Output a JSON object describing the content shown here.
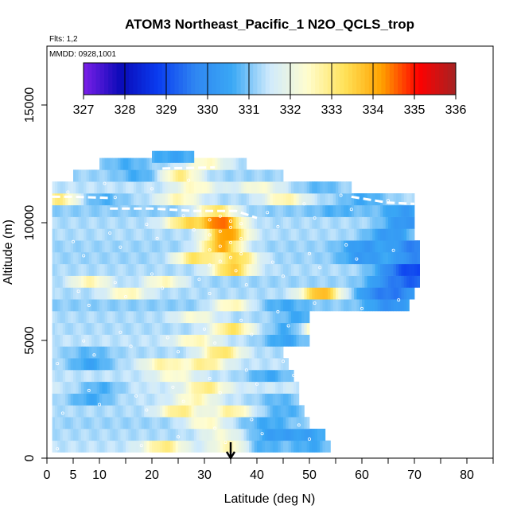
{
  "chart_data": {
    "type": "heatmap",
    "title": "ATOM3 Northeast_Pacific_1 N2O_QCLS_trop",
    "flights_label": "Flts: 1,2",
    "mmdd_label": "MMDD: 0928,1001",
    "xlabel": "Latitude (deg N)",
    "ylabel": "Altitude (m)",
    "xlim": [
      0,
      85
    ],
    "ylim": [
      0,
      17500
    ],
    "x_ticks": [
      0,
      5,
      10,
      20,
      30,
      40,
      50,
      60,
      70,
      80
    ],
    "y_ticks": [
      0,
      5000,
      10000,
      15000
    ],
    "colorbar": {
      "min": 327,
      "max": 336,
      "ticks": [
        327,
        328,
        329,
        330,
        331,
        332,
        333,
        334,
        335,
        336
      ],
      "colors": [
        "#7b1fe8",
        "#0a0ab8",
        "#0a3cf0",
        "#2f86f2",
        "#3aa8f5",
        "#cfeafc",
        "#fffdd0",
        "#ffe35a",
        "#ffa200",
        "#ff0000",
        "#a52323"
      ]
    },
    "marker": {
      "latitude": 35,
      "symbol": "arrow"
    },
    "flight_path_color": "#ffffff",
    "rows": [
      {
        "alt": 500,
        "lat_min": 1,
        "lat_max": 54,
        "base": 331.4,
        "hot": [
          [
            35,
            332.8
          ],
          [
            22,
            333.0
          ]
        ],
        "cold": [
          [
            40,
            330.5
          ],
          [
            50,
            330.6
          ]
        ]
      },
      {
        "alt": 1000,
        "lat_min": 1,
        "lat_max": 53,
        "base": 331.3,
        "hot": [
          [
            33,
            332.2
          ]
        ],
        "cold": [
          [
            43,
            330.4
          ],
          [
            50,
            330.5
          ]
        ]
      },
      {
        "alt": 1500,
        "lat_min": 1,
        "lat_max": 50,
        "base": 331.2,
        "hot": [
          [
            30,
            332.5
          ]
        ],
        "cold": [
          [
            42,
            330.6
          ]
        ]
      },
      {
        "alt": 2000,
        "lat_min": 1,
        "lat_max": 49,
        "base": 331.3,
        "hot": [
          [
            25,
            333.0
          ],
          [
            35,
            332.8
          ]
        ],
        "cold": [
          [
            45,
            330.7
          ]
        ]
      },
      {
        "alt": 2500,
        "lat_min": 1,
        "lat_max": 48,
        "base": 331.4,
        "hot": [
          [
            28,
            332.6
          ]
        ],
        "cold": [
          [
            8,
            330.6
          ],
          [
            44,
            330.8
          ]
        ]
      },
      {
        "alt": 3000,
        "lat_min": 1,
        "lat_max": 48,
        "base": 331.5,
        "hot": [
          [
            30,
            333.0
          ]
        ],
        "cold": [
          [
            10,
            330.7
          ]
        ]
      },
      {
        "alt": 3500,
        "lat_min": 1,
        "lat_max": 47,
        "base": 331.4,
        "hot": [
          [
            24,
            332.4
          ]
        ],
        "cold": [
          [
            42,
            330.6
          ]
        ]
      },
      {
        "alt": 4000,
        "lat_min": 1,
        "lat_max": 46,
        "base": 331.4,
        "hot": [
          [
            30,
            332.9
          ],
          [
            22,
            332.7
          ]
        ],
        "cold": [
          [
            8,
            330.5
          ]
        ]
      },
      {
        "alt": 4500,
        "lat_min": 1,
        "lat_max": 45,
        "base": 331.3,
        "hot": [
          [
            33,
            333.2
          ]
        ],
        "cold": [
          [
            8,
            330.8
          ]
        ]
      },
      {
        "alt": 5000,
        "lat_min": 1,
        "lat_max": 50,
        "base": 331.4,
        "hot": [
          [
            28,
            332.6
          ]
        ],
        "cold": [
          [
            45,
            330.5
          ]
        ]
      },
      {
        "alt": 5500,
        "lat_min": 1,
        "lat_max": 50,
        "base": 331.3,
        "hot": [
          [
            35,
            333.2
          ],
          [
            52,
            333.8
          ]
        ],
        "cold": [
          [
            47,
            330.4
          ]
        ]
      },
      {
        "alt": 6000,
        "lat_min": 1,
        "lat_max": 50,
        "base": 331.3,
        "hot": [
          [
            28,
            332.3
          ]
        ],
        "cold": [
          [
            48,
            330.6
          ]
        ]
      },
      {
        "alt": 6500,
        "lat_min": 1,
        "lat_max": 69,
        "base": 331.1,
        "hot": [
          [
            35,
            332.6
          ]
        ],
        "cold": [
          [
            65,
            330.0
          ],
          [
            45,
            330.6
          ]
        ]
      },
      {
        "alt": 7000,
        "lat_min": 1,
        "lat_max": 70,
        "base": 331.3,
        "hot": [
          [
            52,
            333.9
          ],
          [
            15,
            332.6
          ]
        ],
        "cold": [
          [
            62,
            330.2
          ],
          [
            67,
            330.0
          ]
        ]
      },
      {
        "alt": 7500,
        "lat_min": 1,
        "lat_max": 71,
        "base": 331.2,
        "hot": [
          [
            8,
            332.6
          ],
          [
            22,
            332.5
          ]
        ],
        "cold": [
          [
            65,
            330.0
          ],
          [
            71,
            329.5
          ]
        ]
      },
      {
        "alt": 8000,
        "lat_min": 1,
        "lat_max": 71,
        "base": 331.3,
        "hot": [
          [
            35,
            333.6
          ]
        ],
        "cold": [
          [
            66,
            330.0
          ],
          [
            71,
            329.4
          ]
        ]
      },
      {
        "alt": 8500,
        "lat_min": 1,
        "lat_max": 71,
        "base": 331.2,
        "hot": [
          [
            28,
            333.2
          ],
          [
            36,
            333.4
          ]
        ],
        "cold": [
          [
            60,
            330.2
          ],
          [
            70,
            329.8
          ]
        ]
      },
      {
        "alt": 9000,
        "lat_min": 1,
        "lat_max": 71,
        "base": 331.2,
        "hot": [
          [
            33,
            334.0
          ]
        ],
        "cold": [
          [
            60,
            330.2
          ],
          [
            70,
            329.6
          ]
        ]
      },
      {
        "alt": 9500,
        "lat_min": 1,
        "lat_max": 70,
        "base": 331.3,
        "hot": [
          [
            34,
            334.3
          ]
        ],
        "cold": [
          [
            65,
            330.2
          ]
        ]
      },
      {
        "alt": 10000,
        "lat_min": 1,
        "lat_max": 70,
        "base": 331.3,
        "hot": [
          [
            33,
            334.5
          ],
          [
            26,
            333.2
          ]
        ],
        "cold": [
          [
            68,
            330.1
          ]
        ]
      },
      {
        "alt": 10500,
        "lat_min": 1,
        "lat_max": 70,
        "base": 331.1,
        "hot": [
          [
            32,
            333.2
          ]
        ],
        "cold": [
          [
            55,
            330.7
          ],
          [
            68,
            330.3
          ]
        ]
      },
      {
        "alt": 11000,
        "lat_min": 1,
        "lat_max": 70,
        "base": 331.3,
        "hot": [
          [
            2,
            333.0
          ],
          [
            25,
            332.6
          ],
          [
            45,
            332.7
          ]
        ],
        "cold": [
          [
            10,
            330.7
          ],
          [
            60,
            330.6
          ]
        ]
      },
      {
        "alt": 11500,
        "lat_min": 1,
        "lat_max": 58,
        "base": 331.4,
        "hot": [
          [
            28,
            332.5
          ],
          [
            40,
            332.3
          ]
        ],
        "cold": [
          [
            52,
            330.8
          ]
        ]
      },
      {
        "alt": 12000,
        "lat_min": 5,
        "lat_max": 45,
        "base": 331.2,
        "hot": [
          [
            25,
            333.0
          ]
        ],
        "cold": [
          [
            18,
            330.6
          ]
        ]
      },
      {
        "alt": 12500,
        "lat_min": 10,
        "lat_max": 38,
        "base": 331.3,
        "hot": [
          [
            30,
            332.5
          ]
        ],
        "cold": [
          [
            15,
            330.7
          ]
        ]
      },
      {
        "alt": 12800,
        "lat_min": 20,
        "lat_max": 28,
        "base": 331.0,
        "hot": [],
        "cold": [
          [
            24,
            330.5
          ]
        ]
      }
    ]
  }
}
